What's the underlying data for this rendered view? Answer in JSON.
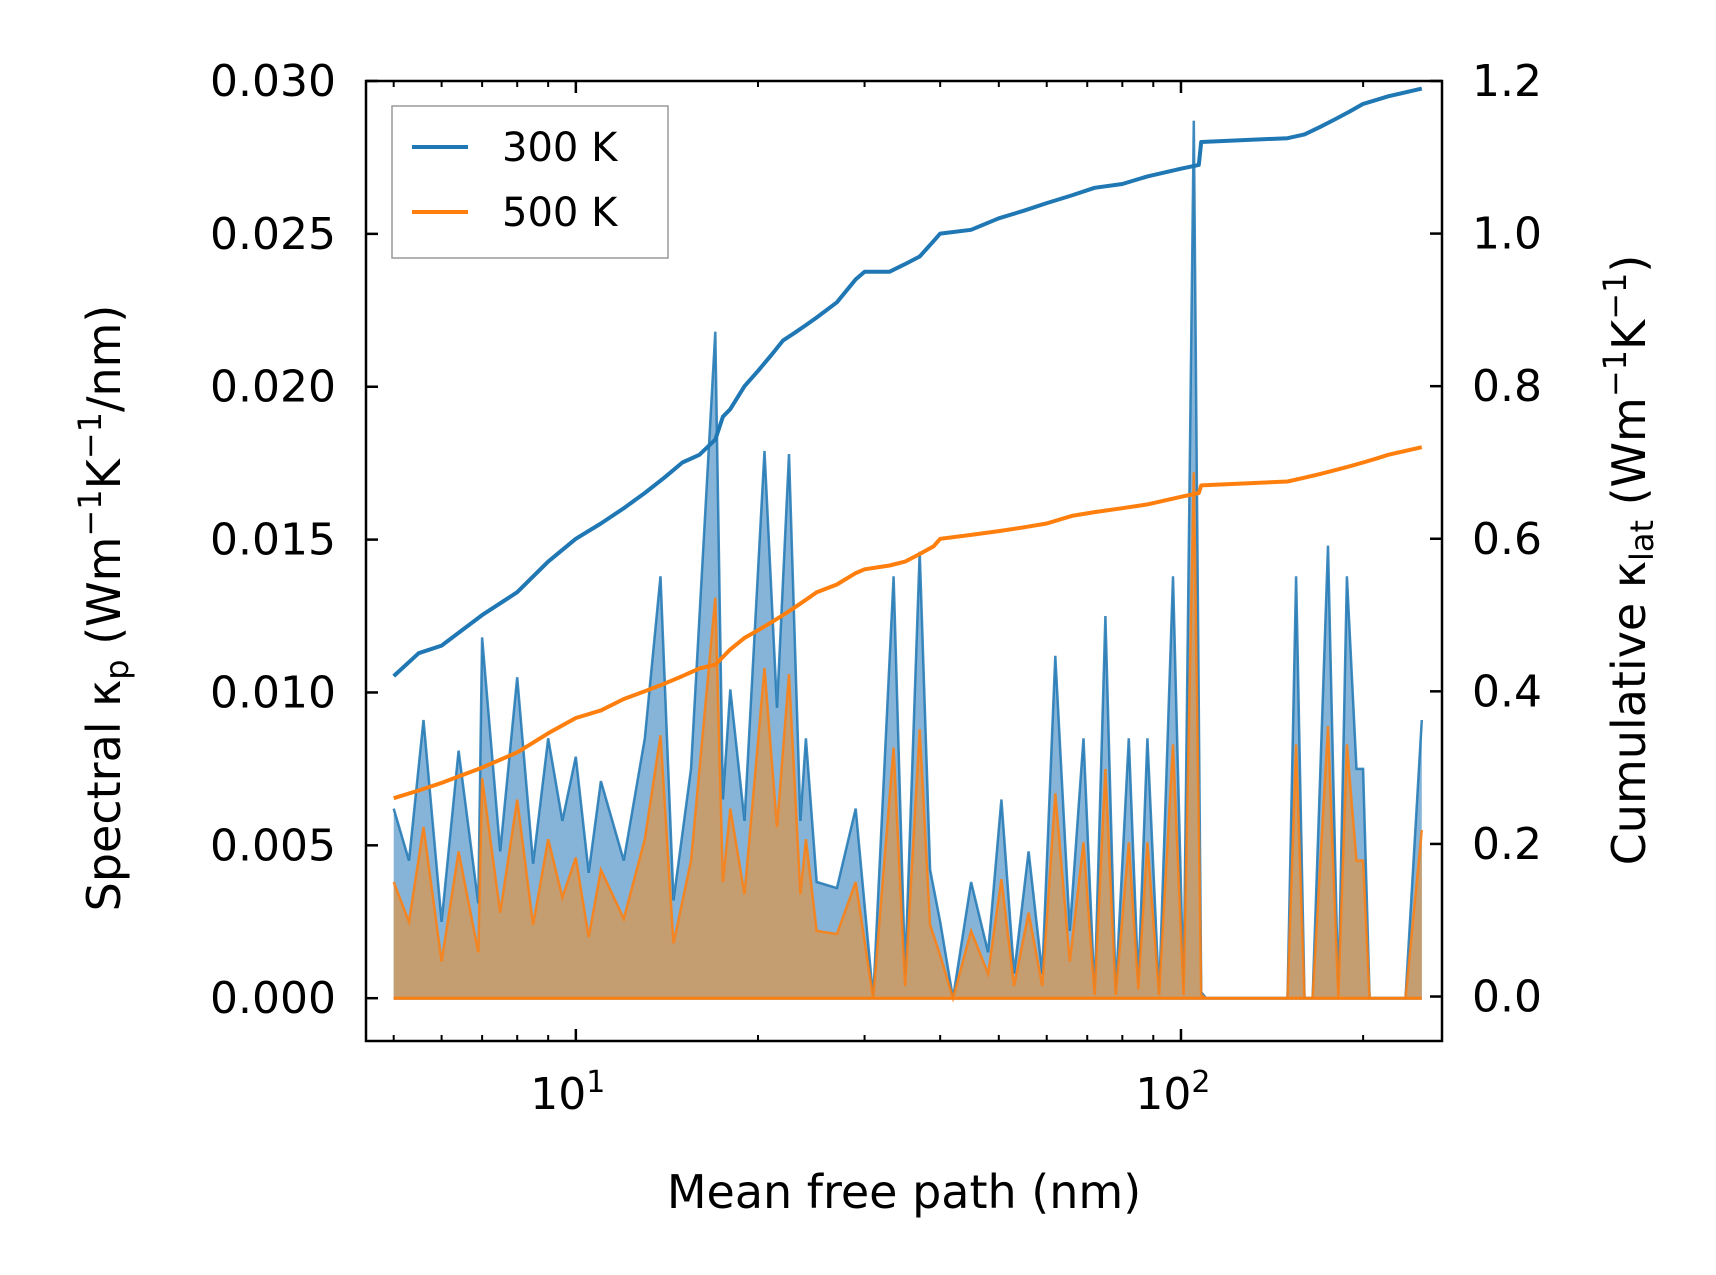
{
  "chart_data": {
    "type": "line",
    "xlabel": "Mean free path (nm)",
    "ylabel": "Spectral κ",
    "ylabel_sub": "p",
    "ylabel_units": " (Wm",
    "ylabel_units_tail": "/nm)",
    "y2label": "Cumulative κ",
    "y2label_sub": "lat",
    "y2label_units": " (Wm",
    "y2label_units_tail": ")",
    "exp_m1": "−1",
    "unit_K": "K",
    "xscale": "log",
    "xlim": [
      4.5,
      270
    ],
    "ylim": [
      -0.0014,
      0.03
    ],
    "y2lim": [
      -0.0583,
      1.2
    ],
    "yticks": [
      "0.000",
      "0.005",
      "0.010",
      "0.015",
      "0.020",
      "0.025",
      "0.030"
    ],
    "y2ticks": [
      "0.0",
      "0.2",
      "0.4",
      "0.6",
      "0.8",
      "1.0",
      "1.2"
    ],
    "xticks_base": "10",
    "xticks_exp": [
      "1",
      "2"
    ],
    "legend": [
      "300 K",
      "500 K"
    ],
    "colors": {
      "s300": "#1f77b4",
      "s500": "#ff7f0e",
      "fill300": "#7fb0d6",
      "fill500": "#c79c6c"
    },
    "spectral_300K": {
      "x": [
        5.0,
        5.3,
        5.6,
        6.0,
        6.4,
        6.9,
        7.0,
        7.5,
        8.0,
        8.5,
        9.0,
        9.5,
        10.0,
        10.5,
        11.0,
        12.0,
        13.0,
        13.8,
        14.5,
        15.5,
        17.0,
        17.5,
        18.0,
        19.0,
        20.5,
        21.5,
        22.5,
        23.5,
        24.0,
        25.0,
        27.0,
        29.0,
        31.0,
        33.5,
        35.0,
        37.0,
        38.5,
        40.0,
        42.0,
        45.0,
        48.0,
        50.5,
        53.0,
        56.0,
        59.0,
        62.0,
        65.5,
        69.0,
        72.0,
        75.0,
        78.0,
        82.0,
        85.0,
        88.0,
        92.0,
        97.0,
        101.0,
        105.0,
        108.0,
        110.0,
        112.0,
        150.0,
        155.0,
        160.0,
        165.0,
        175.0,
        182.0,
        188.0,
        195.0,
        200.0,
        205.0,
        210.0,
        215.0,
        225.0,
        235.0,
        250.0
      ],
      "y": [
        0.0062,
        0.0045,
        0.0091,
        0.0025,
        0.0081,
        0.0031,
        0.0118,
        0.0048,
        0.0105,
        0.0044,
        0.0085,
        0.0058,
        0.0079,
        0.0041,
        0.0071,
        0.0045,
        0.0085,
        0.0138,
        0.0032,
        0.0075,
        0.0218,
        0.0065,
        0.0101,
        0.0058,
        0.0179,
        0.0095,
        0.0178,
        0.0058,
        0.0085,
        0.0038,
        0.0036,
        0.0062,
        0.0,
        0.0138,
        0.0008,
        0.0146,
        0.0042,
        0.0025,
        0.0,
        0.0038,
        0.0015,
        0.0065,
        0.0008,
        0.0048,
        0.0008,
        0.0112,
        0.0022,
        0.0085,
        0.0001,
        0.0125,
        0.0002,
        0.0085,
        0.0005,
        0.0085,
        0.0001,
        0.0138,
        0.0002,
        0.0287,
        0.0002,
        0.0,
        0.0,
        0.0,
        0.0138,
        0.0,
        0.0,
        0.0148,
        0.0,
        0.0138,
        0.0075,
        0.0075,
        0.0,
        0.0,
        0.0,
        0.0,
        0.0,
        0.0091
      ]
    },
    "spectral_500K": {
      "x": [
        5.0,
        5.3,
        5.6,
        6.0,
        6.4,
        6.9,
        7.0,
        7.5,
        8.0,
        8.5,
        9.0,
        9.5,
        10.0,
        10.5,
        11.0,
        12.0,
        13.0,
        13.8,
        14.5,
        15.5,
        17.0,
        17.5,
        18.0,
        19.0,
        20.5,
        21.5,
        22.5,
        23.5,
        24.0,
        25.0,
        27.0,
        29.0,
        31.0,
        33.5,
        35.0,
        37.0,
        38.5,
        40.0,
        42.0,
        45.0,
        48.0,
        50.5,
        53.0,
        56.0,
        59.0,
        62.0,
        65.5,
        69.0,
        72.0,
        75.0,
        78.0,
        82.0,
        85.0,
        88.0,
        92.0,
        97.0,
        101.0,
        105.0,
        108.0,
        110.0,
        112.0,
        150.0,
        155.0,
        160.0,
        165.0,
        175.0,
        182.0,
        188.0,
        195.0,
        200.0,
        205.0,
        210.0,
        215.0,
        225.0,
        235.0,
        250.0
      ],
      "y": [
        0.0038,
        0.0025,
        0.0056,
        0.0012,
        0.0048,
        0.0015,
        0.0072,
        0.0028,
        0.0065,
        0.0024,
        0.0052,
        0.0033,
        0.0046,
        0.002,
        0.0042,
        0.0026,
        0.0052,
        0.0086,
        0.0018,
        0.0045,
        0.0131,
        0.0038,
        0.0062,
        0.0034,
        0.0108,
        0.0056,
        0.0106,
        0.0034,
        0.0052,
        0.0022,
        0.0021,
        0.0038,
        0.0,
        0.0082,
        0.0004,
        0.0088,
        0.0024,
        0.0014,
        0.0,
        0.0022,
        0.0008,
        0.0039,
        0.0004,
        0.0028,
        0.0004,
        0.0067,
        0.0012,
        0.0051,
        0.0001,
        0.0075,
        0.0001,
        0.0051,
        0.0003,
        0.0051,
        0.0001,
        0.0083,
        0.0001,
        0.0172,
        0.0001,
        0.0,
        0.0,
        0.0,
        0.0083,
        0.0,
        0.0,
        0.0089,
        0.0,
        0.0083,
        0.0045,
        0.0045,
        0.0,
        0.0,
        0.0,
        0.0,
        0.0,
        0.0055
      ]
    },
    "cumulative_300K": {
      "x": [
        5.0,
        5.5,
        6.0,
        7.0,
        8.0,
        9.0,
        10.0,
        11.0,
        12.0,
        13.0,
        14.0,
        15.0,
        16.0,
        17.0,
        17.5,
        18.0,
        19.0,
        20.0,
        21.0,
        22.0,
        23.0,
        24.0,
        25.0,
        27.0,
        29.0,
        30.0,
        33.0,
        35.0,
        37.0,
        39.0,
        40.0,
        45.0,
        50.0,
        55.0,
        60.0,
        66.0,
        72.0,
        80.0,
        88.0,
        100.0,
        107.0,
        108.0,
        150.0,
        160.0,
        170.0,
        180.0,
        190.0,
        200.0,
        210.0,
        220.0,
        250.0
      ],
      "y": [
        0.42,
        0.45,
        0.46,
        0.5,
        0.53,
        0.57,
        0.6,
        0.62,
        0.64,
        0.66,
        0.68,
        0.7,
        0.71,
        0.73,
        0.76,
        0.77,
        0.8,
        0.82,
        0.84,
        0.86,
        0.87,
        0.88,
        0.89,
        0.91,
        0.94,
        0.95,
        0.95,
        0.96,
        0.97,
        0.99,
        1.0,
        1.005,
        1.02,
        1.03,
        1.04,
        1.05,
        1.06,
        1.065,
        1.075,
        1.085,
        1.09,
        1.12,
        1.125,
        1.13,
        1.14,
        1.15,
        1.16,
        1.17,
        1.175,
        1.18,
        1.19
      ]
    },
    "cumulative_500K": {
      "x": [
        5.0,
        5.5,
        6.0,
        7.0,
        8.0,
        9.0,
        10.0,
        11.0,
        12.0,
        13.0,
        14.0,
        15.0,
        16.0,
        17.0,
        17.5,
        18.0,
        19.0,
        20.0,
        21.0,
        22.0,
        23.0,
        24.0,
        25.0,
        27.0,
        29.0,
        30.0,
        33.0,
        35.0,
        37.0,
        39.0,
        40.0,
        45.0,
        50.0,
        55.0,
        60.0,
        66.0,
        72.0,
        80.0,
        88.0,
        100.0,
        107.0,
        108.0,
        150.0,
        160.0,
        170.0,
        180.0,
        190.0,
        200.0,
        210.0,
        220.0,
        250.0
      ],
      "y": [
        0.26,
        0.27,
        0.28,
        0.3,
        0.32,
        0.345,
        0.365,
        0.375,
        0.39,
        0.4,
        0.41,
        0.42,
        0.43,
        0.435,
        0.445,
        0.455,
        0.47,
        0.48,
        0.49,
        0.5,
        0.51,
        0.52,
        0.53,
        0.54,
        0.555,
        0.56,
        0.565,
        0.57,
        0.58,
        0.59,
        0.6,
        0.605,
        0.61,
        0.615,
        0.62,
        0.63,
        0.635,
        0.64,
        0.645,
        0.655,
        0.66,
        0.67,
        0.675,
        0.68,
        0.685,
        0.69,
        0.695,
        0.7,
        0.705,
        0.71,
        0.72
      ]
    }
  }
}
